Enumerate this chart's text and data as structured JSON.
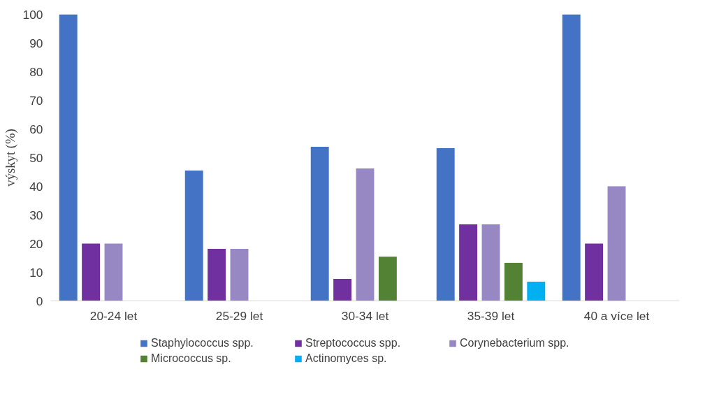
{
  "chart_data": {
    "type": "bar",
    "ylabel": "výskyt (%)",
    "categories": [
      "20-24 let",
      "25-29 let",
      "30-34 let",
      "35-39 let",
      "40 a více let"
    ],
    "series": [
      {
        "name": "Staphylococcus spp.",
        "color": "#4472c4",
        "values": [
          100,
          45.5,
          53.8,
          53.3,
          100
        ]
      },
      {
        "name": "Streptococcus spp.",
        "color": "#7030a0",
        "values": [
          20,
          18.2,
          7.7,
          26.7,
          20
        ]
      },
      {
        "name": "Corynebacterium spp.",
        "color": "#9787c3",
        "values": [
          20,
          18.2,
          46.2,
          26.7,
          40
        ]
      },
      {
        "name": "Micrococcus sp.",
        "color": "#548235",
        "values": [
          null,
          null,
          15.4,
          13.3,
          null
        ]
      },
      {
        "name": "Actinomyces sp.",
        "color": "#00b0f0",
        "values": [
          null,
          null,
          null,
          6.7,
          null
        ]
      }
    ],
    "ylim": [
      0,
      100
    ],
    "yticks": [
      0,
      10,
      20,
      30,
      40,
      50,
      60,
      70,
      80,
      90,
      100
    ],
    "grid": false,
    "legend": "bottom"
  }
}
